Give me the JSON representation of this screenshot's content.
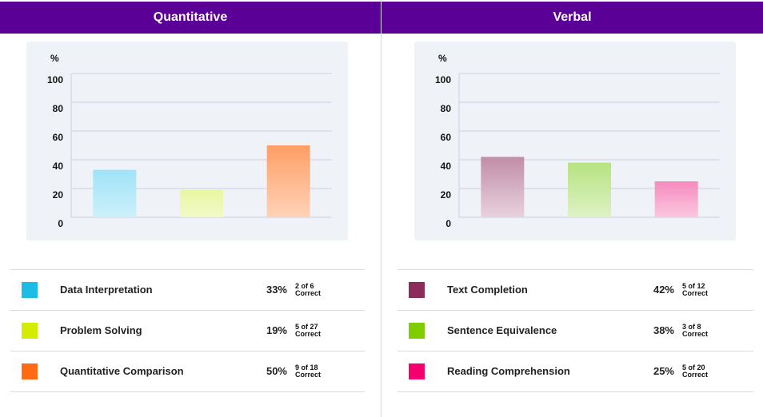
{
  "panels": [
    {
      "title": "Quantitative",
      "legend": [
        {
          "label": "Data Interpretation",
          "percent": "33%",
          "count": "2 of 6",
          "correct": "Correct",
          "color": "#1bbde6"
        },
        {
          "label": "Problem Solving",
          "percent": "19%",
          "count": "5 of 27",
          "correct": "Correct",
          "color": "#d4ec00"
        },
        {
          "label": "Quantitative Comparison",
          "percent": "50%",
          "count": "9 of 18",
          "correct": "Correct",
          "color": "#ff6a12"
        }
      ]
    },
    {
      "title": "Verbal",
      "legend": [
        {
          "label": "Text Completion",
          "percent": "42%",
          "count": "5 of 12",
          "correct": "Correct",
          "color": "#8b2c5c"
        },
        {
          "label": "Sentence Equivalence",
          "percent": "38%",
          "count": "3 of 8",
          "correct": "Correct",
          "color": "#7fcc00"
        },
        {
          "label": "Reading Comprehension",
          "percent": "25%",
          "count": "5 of 20",
          "correct": "Correct",
          "color": "#f5006f"
        }
      ]
    }
  ],
  "chart_data": [
    {
      "type": "bar",
      "title": "Quantitative",
      "ylabel": "%",
      "categories": [
        "Data Interpretation",
        "Problem Solving",
        "Quantitative Comparison"
      ],
      "values": [
        33,
        19,
        50
      ],
      "bar_colors": [
        [
          "#9fe3f7",
          "#cdf0fa"
        ],
        [
          "#e8f7a0",
          "#f2f9c8"
        ],
        [
          "#ff9e66",
          "#ffd3b8"
        ]
      ],
      "yticks": [
        0,
        20,
        40,
        60,
        80,
        100
      ],
      "ylim": [
        0,
        100
      ],
      "grid": true
    },
    {
      "type": "bar",
      "title": "Verbal",
      "ylabel": "%",
      "categories": [
        "Text Completion",
        "Sentence Equivalence",
        "Reading Comprehension"
      ],
      "values": [
        42,
        38,
        25
      ],
      "bar_colors": [
        [
          "#c08ea8",
          "#e8d2dd"
        ],
        [
          "#b6e380",
          "#def2c6"
        ],
        [
          "#f58abd",
          "#fcc7e0"
        ]
      ],
      "yticks": [
        0,
        20,
        40,
        60,
        80,
        100
      ],
      "ylim": [
        0,
        100
      ],
      "grid": true
    }
  ]
}
